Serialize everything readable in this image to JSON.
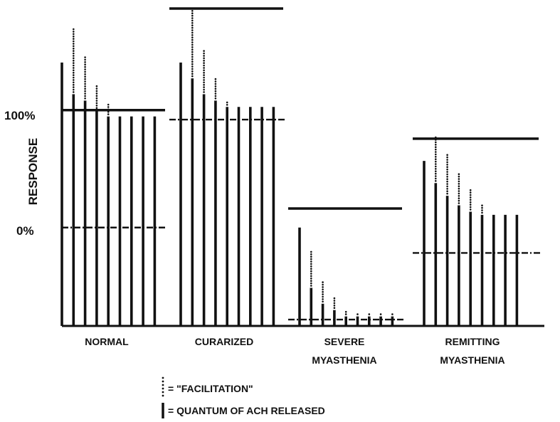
{
  "y_axis": {
    "label": "RESPONSE",
    "tick_100": "100%",
    "tick_0": "0%"
  },
  "groups": [
    {
      "name": "NORMAL",
      "label_lines": [
        "NORMAL"
      ],
      "quanta": [
        0.83,
        0.73,
        0.71,
        0.68,
        0.66,
        0.66,
        0.66,
        0.66,
        0.66
      ],
      "facilitation": [
        0.0,
        0.21,
        0.14,
        0.08,
        0.04,
        0.0,
        0.0,
        0.0,
        0.0
      ],
      "threshold_dashed": 0.31,
      "ceiling_solid": 0.68
    },
    {
      "name": "CURARIZED",
      "label_lines": [
        "CURARIZED"
      ],
      "quanta": [
        0.83,
        0.78,
        0.73,
        0.71,
        0.69,
        0.69,
        0.69,
        0.69,
        0.69
      ],
      "facilitation": [
        0.0,
        0.22,
        0.14,
        0.07,
        0.02,
        0.0,
        0.0,
        0.0,
        0.0
      ],
      "threshold_dashed": 0.65,
      "ceiling_solid": 1.0
    },
    {
      "name": "SEVERE MYASTHENIA",
      "label_lines": [
        "SEVERE",
        "MYASTHENIA"
      ],
      "quanta": [
        0.31,
        0.12,
        0.07,
        0.05,
        0.03,
        0.03,
        0.03,
        0.03,
        0.03
      ],
      "facilitation": [
        0.0,
        0.12,
        0.07,
        0.04,
        0.02,
        0.01,
        0.01,
        0.01,
        0.01
      ],
      "threshold_dashed": 0.02,
      "ceiling_solid": 0.37
    },
    {
      "name": "REMITTING MYASTHENIA",
      "label_lines": [
        "REMITTING",
        "MYASTHENIA"
      ],
      "quanta": [
        0.52,
        0.45,
        0.41,
        0.38,
        0.36,
        0.35,
        0.35,
        0.35,
        0.35
      ],
      "facilitation": [
        0.0,
        0.15,
        0.13,
        0.1,
        0.07,
        0.03,
        0.0,
        0.0,
        0.0
      ],
      "threshold_dashed": 0.23,
      "ceiling_solid": 0.59
    }
  ],
  "legend": {
    "facilitation": "= \"FACILITATION\"",
    "quantum": "= QUANTUM OF ACH RELEASED"
  },
  "colors": {
    "ink": "#111111",
    "background": "#ffffff"
  }
}
